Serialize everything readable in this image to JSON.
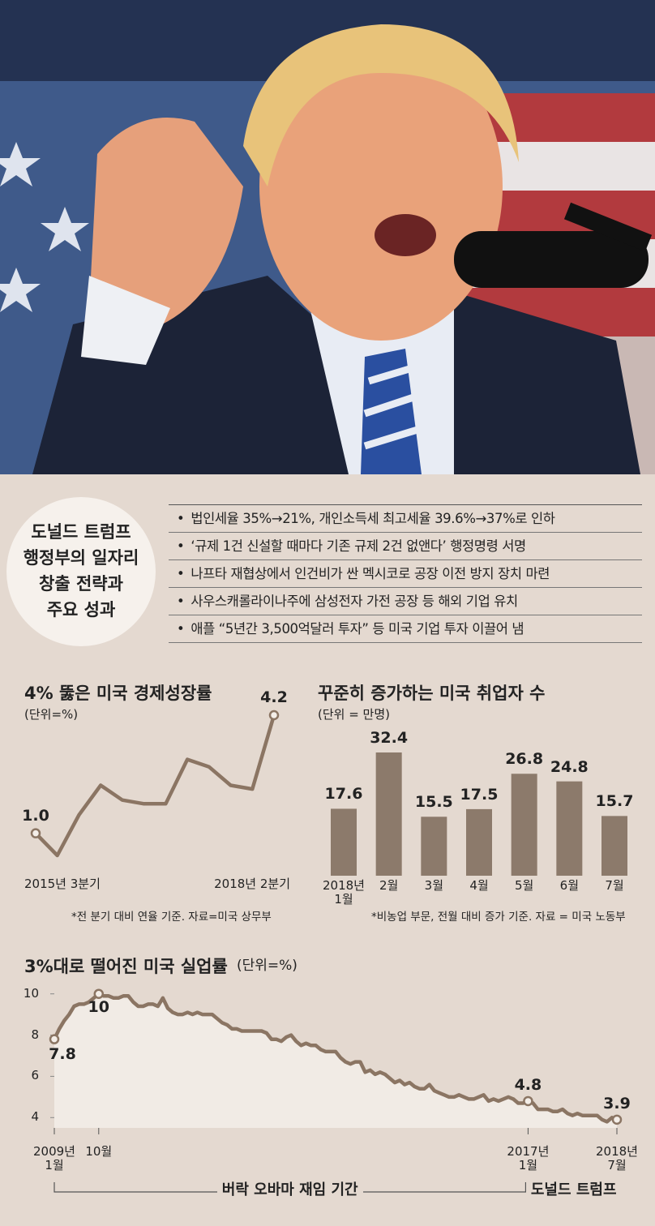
{
  "header": {
    "title": "도널드 트럼프\n행정부의 일자리\n창출 전략과\n주요 성과"
  },
  "bullets": [
    "법인세율 35%→21%, 개인소득세 최고세율 39.6%→37%로 인하",
    "‘규제 1건 신설할 때마다 기존 규제 2건 없앤다’ 행정명령 서명",
    "나프타 재협상에서 인건비가 싼 멕시코로 공장 이전 방지 장치 마련",
    "사우스캐롤라이나주에 삼성전자 가전 공장 등 해외 기업 유치",
    "애플 “5년간 3,500억달러 투자” 등 미국 기업 투자 이끌어 냄"
  ],
  "chart_data": [
    {
      "type": "line",
      "title": "4% 뚫은 미국 경제성장률",
      "subtitle": "(단위=%)",
      "categories": [
        "2015년 3분기",
        null,
        null,
        null,
        null,
        null,
        null,
        null,
        null,
        null,
        null,
        "2018년 2분기"
      ],
      "values": [
        1.0,
        0.4,
        1.5,
        2.3,
        1.9,
        1.8,
        1.8,
        3.0,
        2.8,
        2.3,
        2.2,
        4.2
      ],
      "value_labels": [
        "1.0",
        null,
        null,
        null,
        null,
        null,
        null,
        null,
        null,
        null,
        null,
        "4.2"
      ],
      "color": "#8b7563",
      "note": "*전 분기 대비 연율 기준. 자료=미국 상무부"
    },
    {
      "type": "bar",
      "title": "꾸준히 증가하는 미국 취업자 수",
      "subtitle": "(단위 = 만명)",
      "categories": [
        "2018년\n1월",
        "2월",
        "3월",
        "4월",
        "5월",
        "6월",
        "7월"
      ],
      "values": [
        17.6,
        32.4,
        15.5,
        17.5,
        26.8,
        24.8,
        15.7
      ],
      "color": "#8c7a6b",
      "note": "*비농업 부문, 전월 대비 증가 기준. 자료 = 미국 노동부"
    },
    {
      "type": "area",
      "title": "3%대로 떨어진 미국 실업률",
      "subtitle": "(단위=%)",
      "categories": [
        "2009년\n1월",
        null,
        null,
        null,
        null,
        null,
        null,
        null,
        null,
        "10월",
        null,
        null,
        null,
        null,
        null,
        null,
        null,
        null,
        null,
        null,
        null,
        null,
        null,
        null,
        null,
        null,
        null,
        null,
        null,
        null,
        null,
        null,
        null,
        null,
        null,
        null,
        null,
        null,
        null,
        null,
        null,
        null,
        null,
        null,
        null,
        null,
        null,
        null,
        null,
        null,
        null,
        null,
        null,
        null,
        null,
        null,
        null,
        null,
        null,
        null,
        null,
        null,
        null,
        null,
        null,
        null,
        null,
        null,
        null,
        null,
        null,
        null,
        null,
        null,
        null,
        null,
        null,
        null,
        null,
        null,
        null,
        null,
        null,
        null,
        null,
        null,
        null,
        null,
        null,
        null,
        null,
        null,
        null,
        null,
        null,
        null,
        "2017년\n1월",
        null,
        null,
        null,
        null,
        null,
        null,
        null,
        null,
        null,
        null,
        null,
        null,
        null,
        null,
        null,
        null,
        null,
        "2018년\n7월"
      ],
      "values": [
        7.8,
        8.3,
        8.7,
        9.0,
        9.4,
        9.5,
        9.5,
        9.6,
        9.8,
        10.0,
        9.9,
        9.9,
        9.8,
        9.8,
        9.9,
        9.9,
        9.6,
        9.4,
        9.4,
        9.5,
        9.5,
        9.4,
        9.8,
        9.3,
        9.1,
        9.0,
        9.0,
        9.1,
        9.0,
        9.1,
        9.0,
        9.0,
        9.0,
        8.8,
        8.6,
        8.5,
        8.3,
        8.3,
        8.2,
        8.2,
        8.2,
        8.2,
        8.2,
        8.1,
        7.8,
        7.8,
        7.7,
        7.9,
        8.0,
        7.7,
        7.5,
        7.6,
        7.5,
        7.5,
        7.3,
        7.2,
        7.2,
        7.2,
        6.9,
        6.7,
        6.6,
        6.7,
        6.7,
        6.2,
        6.3,
        6.1,
        6.2,
        6.1,
        5.9,
        5.7,
        5.8,
        5.6,
        5.7,
        5.5,
        5.4,
        5.4,
        5.6,
        5.3,
        5.2,
        5.1,
        5.0,
        5.0,
        5.1,
        5.0,
        4.9,
        4.9,
        5.0,
        5.1,
        4.8,
        4.9,
        4.8,
        4.9,
        5.0,
        4.9,
        4.7,
        4.7,
        4.8,
        4.7,
        4.4,
        4.4,
        4.4,
        4.3,
        4.3,
        4.4,
        4.2,
        4.1,
        4.2,
        4.1,
        4.1,
        4.1,
        4.1,
        3.9,
        3.8,
        4.0,
        3.9
      ],
      "value_labels": [
        "7.8",
        null,
        null,
        null,
        null,
        null,
        null,
        null,
        null,
        "10",
        null,
        null,
        null,
        null,
        null,
        null,
        null,
        null,
        null,
        null,
        null,
        null,
        null,
        null,
        null,
        null,
        null,
        null,
        null,
        null,
        null,
        null,
        null,
        null,
        null,
        null,
        null,
        null,
        null,
        null,
        null,
        null,
        null,
        null,
        null,
        null,
        null,
        null,
        null,
        null,
        null,
        null,
        null,
        null,
        null,
        null,
        null,
        null,
        null,
        null,
        null,
        null,
        null,
        null,
        null,
        null,
        null,
        null,
        null,
        null,
        null,
        null,
        null,
        null,
        null,
        null,
        null,
        null,
        null,
        null,
        null,
        null,
        null,
        null,
        null,
        null,
        null,
        null,
        null,
        null,
        null,
        null,
        null,
        null,
        null,
        null,
        "4.8",
        null,
        null,
        null,
        null,
        null,
        null,
        null,
        null,
        null,
        null,
        null,
        null,
        null,
        null,
        null,
        null,
        null,
        "3.9"
      ],
      "color": "#8b7563",
      "ylim": [
        3.5,
        10.5
      ],
      "yticks": [
        4,
        6,
        8,
        10
      ],
      "annotations": [
        "버락 오바마 재임 기간",
        "도널드 트럼프"
      ]
    }
  ]
}
